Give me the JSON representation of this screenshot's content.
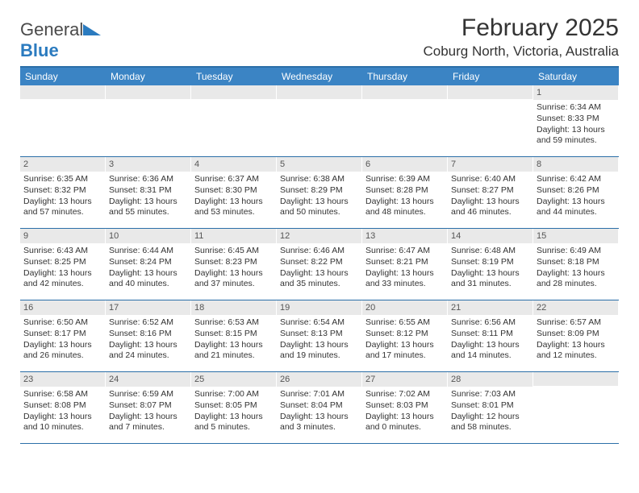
{
  "logo": {
    "textGray": "General",
    "textBlue": "Blue"
  },
  "header": {
    "title": "February 2025",
    "location": "Coburg North, Victoria, Australia"
  },
  "colors": {
    "headerBar": "#3b84c4",
    "ruleLine": "#2b6fa8",
    "dayNumBg": "#e9e9e9",
    "textDark": "#333333"
  },
  "dayNames": [
    "Sunday",
    "Monday",
    "Tuesday",
    "Wednesday",
    "Thursday",
    "Friday",
    "Saturday"
  ],
  "firstDayOffset": 6,
  "days": [
    {
      "n": 1,
      "sunrise": "6:34 AM",
      "sunset": "8:33 PM",
      "daylight": "13 hours and 59 minutes."
    },
    {
      "n": 2,
      "sunrise": "6:35 AM",
      "sunset": "8:32 PM",
      "daylight": "13 hours and 57 minutes."
    },
    {
      "n": 3,
      "sunrise": "6:36 AM",
      "sunset": "8:31 PM",
      "daylight": "13 hours and 55 minutes."
    },
    {
      "n": 4,
      "sunrise": "6:37 AM",
      "sunset": "8:30 PM",
      "daylight": "13 hours and 53 minutes."
    },
    {
      "n": 5,
      "sunrise": "6:38 AM",
      "sunset": "8:29 PM",
      "daylight": "13 hours and 50 minutes."
    },
    {
      "n": 6,
      "sunrise": "6:39 AM",
      "sunset": "8:28 PM",
      "daylight": "13 hours and 48 minutes."
    },
    {
      "n": 7,
      "sunrise": "6:40 AM",
      "sunset": "8:27 PM",
      "daylight": "13 hours and 46 minutes."
    },
    {
      "n": 8,
      "sunrise": "6:42 AM",
      "sunset": "8:26 PM",
      "daylight": "13 hours and 44 minutes."
    },
    {
      "n": 9,
      "sunrise": "6:43 AM",
      "sunset": "8:25 PM",
      "daylight": "13 hours and 42 minutes."
    },
    {
      "n": 10,
      "sunrise": "6:44 AM",
      "sunset": "8:24 PM",
      "daylight": "13 hours and 40 minutes."
    },
    {
      "n": 11,
      "sunrise": "6:45 AM",
      "sunset": "8:23 PM",
      "daylight": "13 hours and 37 minutes."
    },
    {
      "n": 12,
      "sunrise": "6:46 AM",
      "sunset": "8:22 PM",
      "daylight": "13 hours and 35 minutes."
    },
    {
      "n": 13,
      "sunrise": "6:47 AM",
      "sunset": "8:21 PM",
      "daylight": "13 hours and 33 minutes."
    },
    {
      "n": 14,
      "sunrise": "6:48 AM",
      "sunset": "8:19 PM",
      "daylight": "13 hours and 31 minutes."
    },
    {
      "n": 15,
      "sunrise": "6:49 AM",
      "sunset": "8:18 PM",
      "daylight": "13 hours and 28 minutes."
    },
    {
      "n": 16,
      "sunrise": "6:50 AM",
      "sunset": "8:17 PM",
      "daylight": "13 hours and 26 minutes."
    },
    {
      "n": 17,
      "sunrise": "6:52 AM",
      "sunset": "8:16 PM",
      "daylight": "13 hours and 24 minutes."
    },
    {
      "n": 18,
      "sunrise": "6:53 AM",
      "sunset": "8:15 PM",
      "daylight": "13 hours and 21 minutes."
    },
    {
      "n": 19,
      "sunrise": "6:54 AM",
      "sunset": "8:13 PM",
      "daylight": "13 hours and 19 minutes."
    },
    {
      "n": 20,
      "sunrise": "6:55 AM",
      "sunset": "8:12 PM",
      "daylight": "13 hours and 17 minutes."
    },
    {
      "n": 21,
      "sunrise": "6:56 AM",
      "sunset": "8:11 PM",
      "daylight": "13 hours and 14 minutes."
    },
    {
      "n": 22,
      "sunrise": "6:57 AM",
      "sunset": "8:09 PM",
      "daylight": "13 hours and 12 minutes."
    },
    {
      "n": 23,
      "sunrise": "6:58 AM",
      "sunset": "8:08 PM",
      "daylight": "13 hours and 10 minutes."
    },
    {
      "n": 24,
      "sunrise": "6:59 AM",
      "sunset": "8:07 PM",
      "daylight": "13 hours and 7 minutes."
    },
    {
      "n": 25,
      "sunrise": "7:00 AM",
      "sunset": "8:05 PM",
      "daylight": "13 hours and 5 minutes."
    },
    {
      "n": 26,
      "sunrise": "7:01 AM",
      "sunset": "8:04 PM",
      "daylight": "13 hours and 3 minutes."
    },
    {
      "n": 27,
      "sunrise": "7:02 AM",
      "sunset": "8:03 PM",
      "daylight": "13 hours and 0 minutes."
    },
    {
      "n": 28,
      "sunrise": "7:03 AM",
      "sunset": "8:01 PM",
      "daylight": "12 hours and 58 minutes."
    }
  ],
  "labels": {
    "sunrise": "Sunrise:",
    "sunset": "Sunset:",
    "daylight": "Daylight:"
  }
}
